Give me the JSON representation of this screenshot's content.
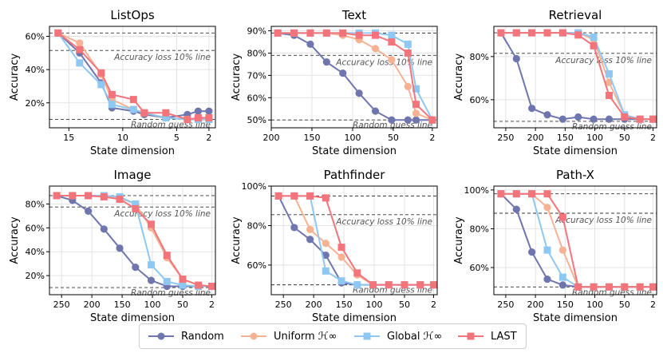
{
  "annotations": {
    "loss_line": "Accuracy loss 10% line",
    "random_line": "Random guess line"
  },
  "legend": [
    {
      "key": "random",
      "label": "Random",
      "color": "#6f76ad",
      "marker": "circle"
    },
    {
      "key": "uniform",
      "label": "Uniform ℋ∞",
      "color": "#f7b294",
      "marker": "circle"
    },
    {
      "key": "global",
      "label": "Global ℋ∞",
      "color": "#8ec8f2",
      "marker": "square"
    },
    {
      "key": "last",
      "label": "LAST",
      "color": "#f4747b",
      "marker": "square"
    }
  ],
  "chart_data": [
    {
      "type": "line",
      "title": "ListOps",
      "xlabel": "State dimension",
      "ylabel": "Accuracy",
      "xlim": [
        16.8,
        1.4
      ],
      "ylim": [
        5,
        66
      ],
      "xticks": [
        15,
        10,
        5,
        2
      ],
      "yticks": [
        20,
        40,
        60
      ],
      "ytick_labels": [
        "20%",
        "40%",
        "60%"
      ],
      "hlines": {
        "full": 62,
        "loss": 51.5,
        "random": 10
      },
      "x": [
        16,
        14,
        12,
        11,
        9,
        8,
        6,
        4,
        3,
        2
      ],
      "series": [
        {
          "key": "random",
          "values": [
            62,
            50,
            32,
            17,
            15,
            13,
            11,
            13,
            15,
            15
          ]
        },
        {
          "key": "uniform",
          "values": [
            62,
            56,
            37,
            22,
            16,
            14,
            11,
            10,
            10,
            10
          ]
        },
        {
          "key": "global",
          "values": [
            62,
            44,
            31,
            19,
            16,
            14,
            11,
            10,
            10,
            10
          ]
        },
        {
          "key": "last",
          "values": [
            62,
            52,
            38,
            25,
            22,
            14,
            14,
            10,
            11,
            11
          ]
        }
      ]
    },
    {
      "type": "line",
      "title": "Text",
      "xlabel": "State dimension",
      "ylabel": "Accuracy",
      "xlim": [
        200,
        -4
      ],
      "ylim": [
        46.5,
        92
      ],
      "xticks": [
        200,
        150,
        100,
        50,
        2
      ],
      "yticks": [
        50,
        60,
        70,
        80,
        90
      ],
      "ytick_labels": [
        "50%",
        "60%",
        "70%",
        "80%",
        "90%"
      ],
      "hlines": {
        "full": 89,
        "loss": 79,
        "random": 50
      },
      "x": [
        192,
        172,
        152,
        132,
        112,
        92,
        72,
        52,
        32,
        22,
        2
      ],
      "series": [
        {
          "key": "random",
          "values": [
            89,
            88,
            84,
            76,
            71,
            62,
            54,
            50,
            50,
            50,
            50
          ]
        },
        {
          "key": "uniform",
          "values": [
            89,
            89,
            89,
            89,
            88,
            86,
            82,
            77,
            65,
            53,
            50
          ]
        },
        {
          "key": "global",
          "values": [
            89,
            89,
            89,
            89,
            89,
            89,
            89,
            88,
            84,
            64,
            50
          ]
        },
        {
          "key": "last",
          "values": [
            89,
            89,
            89,
            89,
            89,
            88,
            88,
            85,
            80,
            57,
            50
          ]
        }
      ]
    },
    {
      "type": "line",
      "title": "Retrieval",
      "xlabel": "State dimension",
      "ylabel": "Accuracy",
      "xlim": [
        270,
        -4
      ],
      "ylim": [
        47,
        94
      ],
      "xticks": [
        250,
        200,
        150,
        100,
        50,
        2
      ],
      "yticks": [
        60,
        80
      ],
      "ytick_labels": [
        "60%",
        "80%"
      ],
      "hlines": {
        "full": 91,
        "loss": 81.5,
        "random": 50
      },
      "x": [
        258,
        232,
        206,
        180,
        154,
        128,
        102,
        76,
        50,
        24,
        2
      ],
      "series": [
        {
          "key": "random",
          "values": [
            91,
            79,
            56,
            53,
            51,
            52,
            51,
            51,
            51,
            51,
            51
          ]
        },
        {
          "key": "uniform",
          "values": [
            91,
            91,
            91,
            91,
            91,
            91,
            88,
            68,
            53,
            51,
            51
          ]
        },
        {
          "key": "global",
          "values": [
            91,
            91,
            91,
            91,
            91,
            91,
            89,
            72,
            53,
            51,
            51
          ]
        },
        {
          "key": "last",
          "values": [
            91,
            91,
            91,
            91,
            91,
            90,
            85,
            62,
            52,
            51,
            51
          ]
        }
      ]
    },
    {
      "type": "line",
      "title": "Image",
      "xlabel": "State dimension",
      "ylabel": "Accuracy",
      "xlim": [
        270,
        -4
      ],
      "ylim": [
        4,
        95
      ],
      "xticks": [
        250,
        200,
        150,
        100,
        50,
        2
      ],
      "yticks": [
        20,
        40,
        60,
        80
      ],
      "ytick_labels": [
        "20%",
        "40%",
        "60%",
        "80%"
      ],
      "hlines": {
        "full": 87,
        "loss": 77.5,
        "random": 10
      },
      "x": [
        258,
        232,
        206,
        180,
        154,
        128,
        102,
        76,
        50,
        24,
        2
      ],
      "series": [
        {
          "key": "random",
          "values": [
            87,
            83,
            74,
            59,
            43,
            27,
            16,
            11,
            11,
            11,
            11
          ]
        },
        {
          "key": "uniform",
          "values": [
            87,
            87,
            87,
            86,
            85,
            80,
            60,
            35,
            17,
            12,
            11
          ]
        },
        {
          "key": "global",
          "values": [
            87,
            87,
            87,
            87,
            86,
            80,
            29,
            15,
            12,
            11,
            11
          ]
        },
        {
          "key": "last",
          "values": [
            87,
            87,
            87,
            86,
            84,
            76,
            63,
            37,
            17,
            12,
            11
          ]
        }
      ]
    },
    {
      "type": "line",
      "title": "Pathfinder",
      "xlabel": "State dimension",
      "ylabel": "Accuracy",
      "xlim": [
        270,
        -4
      ],
      "ylim": [
        45,
        100
      ],
      "xticks": [
        250,
        200,
        150,
        100,
        50,
        2
      ],
      "yticks": [
        60,
        80,
        100
      ],
      "ytick_labels": [
        "60%",
        "80%",
        "100%"
      ],
      "hlines": {
        "full": 95,
        "loss": 85.5,
        "random": 50
      },
      "x": [
        258,
        232,
        206,
        180,
        154,
        128,
        102,
        76,
        50,
        24,
        2
      ],
      "series": [
        {
          "key": "random",
          "values": [
            95,
            79,
            73,
            65,
            51,
            50,
            50,
            50,
            50,
            50,
            50
          ]
        },
        {
          "key": "uniform",
          "values": [
            95,
            95,
            78,
            71,
            64,
            55,
            50,
            50,
            50,
            50,
            50
          ]
        },
        {
          "key": "global",
          "values": [
            95,
            95,
            95,
            57,
            52,
            50,
            50,
            50,
            50,
            50,
            50
          ]
        },
        {
          "key": "last",
          "values": [
            95,
            95,
            95,
            94,
            69,
            56,
            50,
            50,
            50,
            50,
            50
          ]
        }
      ]
    },
    {
      "type": "line",
      "title": "Path-X",
      "xlabel": "State dimension",
      "ylabel": "Accuracy",
      "xlim": [
        270,
        -4
      ],
      "ylim": [
        46,
        102
      ],
      "xticks": [
        250,
        200,
        150,
        100,
        50,
        2
      ],
      "yticks": [
        60,
        80,
        100
      ],
      "ytick_labels": [
        "60%",
        "80%",
        "100%"
      ],
      "hlines": {
        "full": 98,
        "loss": 88,
        "random": 50
      },
      "x": [
        258,
        232,
        206,
        180,
        154,
        128,
        102,
        76,
        50,
        24,
        2
      ],
      "series": [
        {
          "key": "random",
          "values": [
            98,
            90,
            68,
            54,
            51,
            50,
            50,
            50,
            50,
            50,
            50
          ]
        },
        {
          "key": "uniform",
          "values": [
            98,
            98,
            98,
            91,
            69,
            50,
            50,
            50,
            50,
            50,
            50
          ]
        },
        {
          "key": "global",
          "values": [
            98,
            98,
            98,
            69,
            55,
            50,
            50,
            50,
            50,
            50,
            50
          ]
        },
        {
          "key": "last",
          "values": [
            98,
            98,
            98,
            98,
            86,
            50,
            50,
            50,
            50,
            50,
            50
          ]
        }
      ]
    }
  ]
}
